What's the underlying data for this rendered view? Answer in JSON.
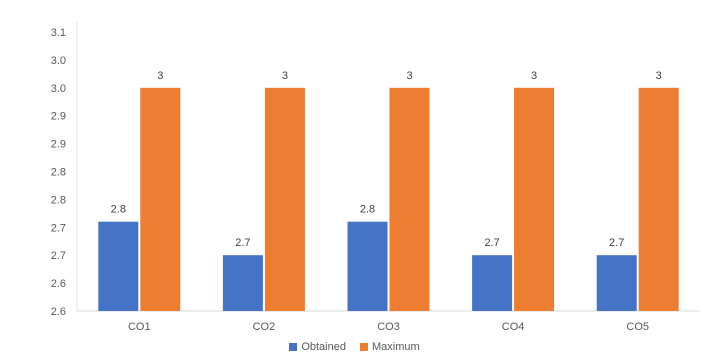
{
  "chart_data": {
    "type": "bar",
    "categories": [
      "CO1",
      "CO2",
      "CO3",
      "CO4",
      "CO5"
    ],
    "series": [
      {
        "name": "Obtained",
        "values": [
          2.76,
          2.7,
          2.76,
          2.7,
          2.7
        ],
        "labels": [
          "2.8",
          "2.7",
          "2.8",
          "2.7",
          "2.7"
        ],
        "color": "#4472c4"
      },
      {
        "name": "Maximum",
        "values": [
          3.0,
          3.0,
          3.0,
          3.0,
          3.0
        ],
        "labels": [
          "3",
          "3",
          "3",
          "3",
          "3"
        ],
        "color": "#ed7d31"
      }
    ],
    "y_ticks": [
      "2.6",
      "2.6",
      "2.7",
      "2.7",
      "2.8",
      "2.8",
      "2.9",
      "2.9",
      "3.0",
      "3.0",
      "3.1"
    ],
    "ylim": [
      2.6,
      3.1
    ],
    "grid": false,
    "legend_position": "bottom",
    "title": "",
    "xlabel": "",
    "ylabel": ""
  }
}
